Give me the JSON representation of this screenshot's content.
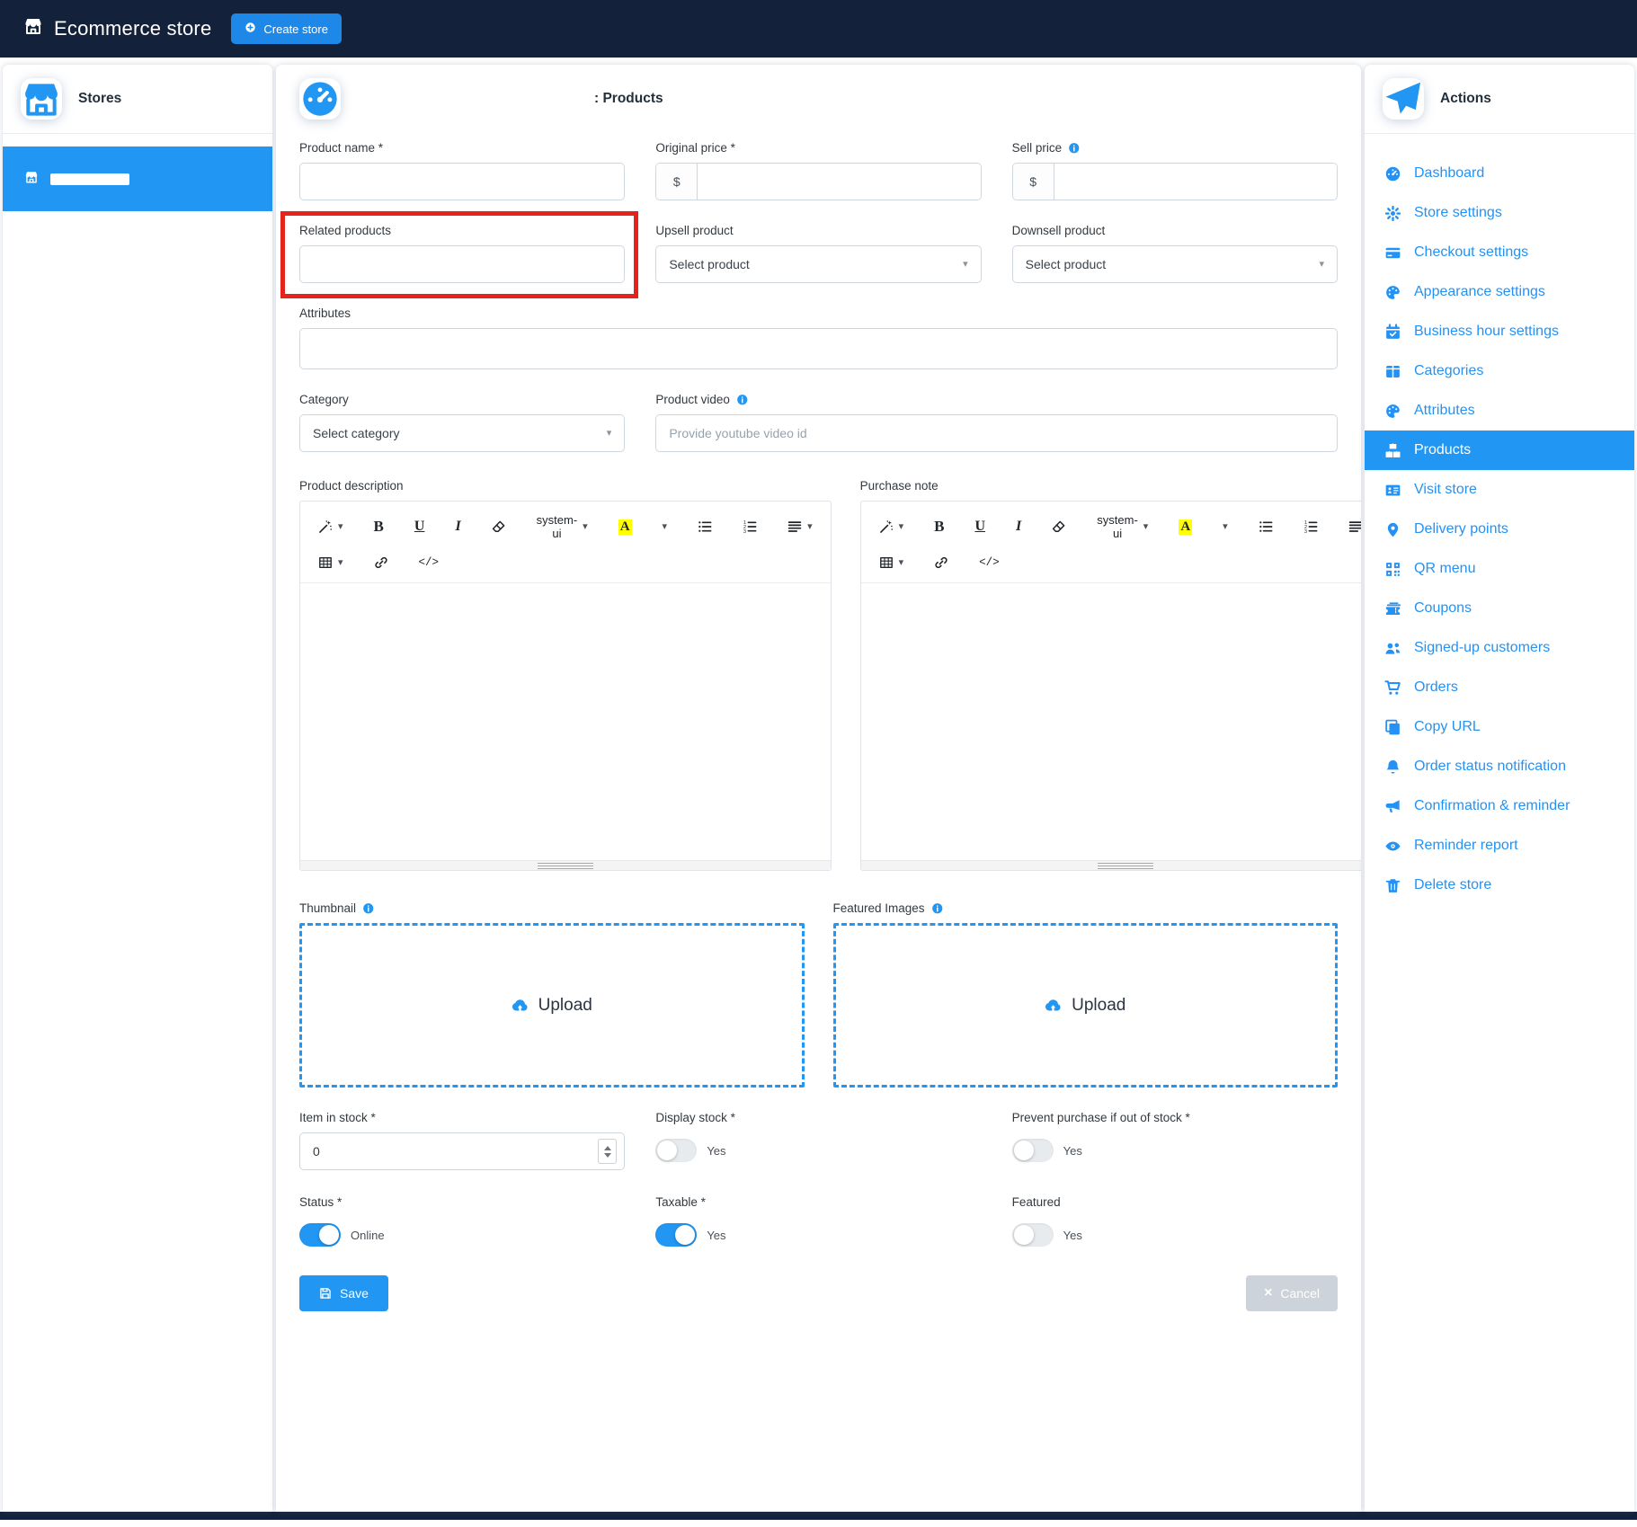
{
  "navbar": {
    "brand": "Ecommerce store",
    "brand_icon": "store-icon",
    "create_store_label": "Create store",
    "create_store_icon": "plus-circle-icon"
  },
  "stores_panel": {
    "title": "Stores",
    "icon": "store-icon",
    "selected_store_redacted": true
  },
  "main": {
    "header_icon": "dashboard-icon",
    "title_suffix": ": Products"
  },
  "form": {
    "product_name": {
      "label": "Product name *",
      "value": ""
    },
    "original_price": {
      "label": "Original price *",
      "prefix": "$",
      "value": ""
    },
    "sell_price": {
      "label": "Sell price",
      "prefix": "$",
      "value": "",
      "info_icon": "info-icon"
    },
    "related_products": {
      "label": "Related products",
      "value": "",
      "annotated": true
    },
    "upsell_product": {
      "label": "Upsell product",
      "selected": "Select product"
    },
    "downsell_product": {
      "label": "Downsell product",
      "selected": "Select product"
    },
    "attributes": {
      "label": "Attributes",
      "value": ""
    },
    "category": {
      "label": "Category",
      "selected": "Select category"
    },
    "product_video": {
      "label": "Product video",
      "placeholder": "Provide youtube video id",
      "info_icon": "info-icon"
    },
    "product_description": {
      "label": "Product description"
    },
    "purchase_note": {
      "label": "Purchase note"
    },
    "toolbar_rows": [
      [
        {
          "name": "style-magic-button",
          "icon": "magic-icon",
          "caret": true
        },
        {
          "name": "bold-button",
          "text": "B",
          "cls": "b"
        },
        {
          "name": "underline-button",
          "text": "U",
          "cls": "u"
        },
        {
          "name": "italic-button",
          "text": "I",
          "cls": "i"
        },
        {
          "name": "clear-format-button",
          "icon": "eraser-icon"
        },
        {
          "name": "font-family-button",
          "text": "system-ui",
          "cls": "fontname",
          "caret": true
        },
        {
          "name": "text-color-button",
          "text": "A",
          "cls": "colorA"
        },
        {
          "name": "color-caret-button",
          "caret": true
        },
        {
          "name": "unordered-list-button",
          "icon": "ul-icon"
        },
        {
          "name": "ordered-list-button",
          "icon": "ol-icon"
        },
        {
          "name": "paragraph-align-button",
          "icon": "paragraph-icon",
          "caret": true
        }
      ],
      [
        {
          "name": "table-button",
          "icon": "table-icon",
          "caret": true
        },
        {
          "name": "link-button",
          "icon": "link-icon"
        },
        {
          "name": "code-view-button",
          "text": "</>",
          "cls": "code"
        }
      ]
    ],
    "thumbnail": {
      "label": "Thumbnail",
      "info_icon": "info-icon",
      "upload_label": "Upload",
      "upload_icon": "cloud-upload-icon"
    },
    "featured_images": {
      "label": "Featured Images",
      "info_icon": "info-icon",
      "upload_label": "Upload",
      "upload_icon": "cloud-upload-icon"
    },
    "item_in_stock": {
      "label": "Item in stock *",
      "value": "0"
    },
    "display_stock": {
      "label": "Display stock *",
      "state_label": "Yes",
      "on": false
    },
    "prevent_purchase": {
      "label": "Prevent purchase if out of stock *",
      "state_label": "Yes",
      "on": false
    },
    "status": {
      "label": "Status *",
      "state_label": "Online",
      "on": true
    },
    "taxable": {
      "label": "Taxable *",
      "state_label": "Yes",
      "on": true
    },
    "featured": {
      "label": "Featured",
      "state_label": "Yes",
      "on": false
    },
    "save_label": "Save",
    "save_icon": "save-icon",
    "cancel_label": "Cancel"
  },
  "actions_panel": {
    "title": "Actions",
    "icon": "paper-plane-icon",
    "items": [
      {
        "label": "Dashboard",
        "icon": "dashboard-icon",
        "active": false
      },
      {
        "label": "Store settings",
        "icon": "gear-icon",
        "active": false
      },
      {
        "label": "Checkout settings",
        "icon": "credit-card-icon",
        "active": false
      },
      {
        "label": "Appearance settings",
        "icon": "palette-icon",
        "active": false
      },
      {
        "label": "Business hour settings",
        "icon": "calendar-check-icon",
        "active": false
      },
      {
        "label": "Categories",
        "icon": "columns-icon",
        "active": false
      },
      {
        "label": "Attributes",
        "icon": "palette-icon",
        "active": false
      },
      {
        "label": "Products",
        "icon": "boxes-icon",
        "active": true
      },
      {
        "label": "Visit store",
        "icon": "address-card-icon",
        "active": false
      },
      {
        "label": "Delivery points",
        "icon": "map-marker-icon",
        "active": false
      },
      {
        "label": "QR menu",
        "icon": "qrcode-icon",
        "active": false
      },
      {
        "label": "Coupons",
        "icon": "coupons-icon",
        "active": false
      },
      {
        "label": "Signed-up customers",
        "icon": "users-icon",
        "active": false
      },
      {
        "label": "Orders",
        "icon": "cart-icon",
        "active": false
      },
      {
        "label": "Copy URL",
        "icon": "copy-icon",
        "active": false
      },
      {
        "label": "Order status notification",
        "icon": "bell-icon",
        "active": false
      },
      {
        "label": "Confirmation & reminder",
        "icon": "megaphone-icon",
        "active": false
      },
      {
        "label": "Reminder report",
        "icon": "eye-icon",
        "active": false
      },
      {
        "label": "Delete store",
        "icon": "trash-icon",
        "active": false
      }
    ]
  },
  "colors": {
    "accent": "#2196f3",
    "navbar_bg": "#14213b",
    "annotation_red": "#e3231c",
    "link_blue": "#2492f4"
  }
}
